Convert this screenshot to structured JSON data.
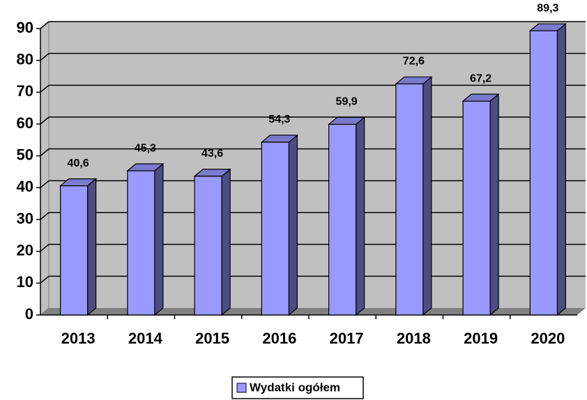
{
  "chart_data": {
    "type": "bar3d",
    "categories": [
      "2013",
      "2014",
      "2015",
      "2016",
      "2017",
      "2018",
      "2019",
      "2020"
    ],
    "series": [
      {
        "name": "Wydatki ogółem",
        "color": "#9999ff",
        "values": [
          40.6,
          45.3,
          43.6,
          54.3,
          59.9,
          72.6,
          67.2,
          89.3
        ],
        "value_labels": [
          "40,6",
          "45,3",
          "43,6",
          "54,3",
          "59,9",
          "72,6",
          "67,2",
          "89,3"
        ]
      }
    ],
    "ylim": [
      0,
      90
    ],
    "yticks": [
      0,
      10,
      20,
      30,
      40,
      50,
      60,
      70,
      80,
      90
    ],
    "grid": true,
    "legend": "bottom"
  }
}
